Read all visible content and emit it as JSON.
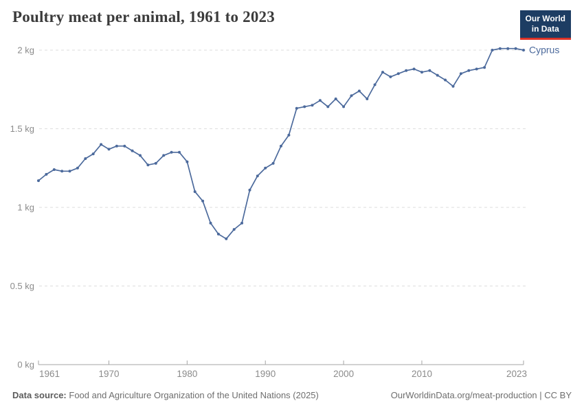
{
  "header": {
    "title": "Poultry meat per animal, 1961 to 2023"
  },
  "logo": {
    "line1": "Our World",
    "line2": "in Data"
  },
  "chart_data": {
    "type": "line",
    "title": "Poultry meat per animal, 1961 to 2023",
    "xlim": [
      1961,
      2023
    ],
    "ylim": [
      0,
      2
    ],
    "unit": "kg",
    "grid": "horizontal-dashed",
    "legend_position": "end-of-line-label",
    "x_ticks": [
      1961,
      1970,
      1980,
      1990,
      2000,
      2010,
      2023
    ],
    "y_ticks": [
      {
        "value": 0,
        "label": "0 kg"
      },
      {
        "value": 0.5,
        "label": "0.5 kg"
      },
      {
        "value": 1,
        "label": "1 kg"
      },
      {
        "value": 1.5,
        "label": "1.5 kg"
      },
      {
        "value": 2,
        "label": "2 kg"
      }
    ],
    "series": [
      {
        "name": "Cyprus",
        "color": "#4C6A9C",
        "x": [
          1961,
          1962,
          1963,
          1964,
          1965,
          1966,
          1967,
          1968,
          1969,
          1970,
          1971,
          1972,
          1973,
          1974,
          1975,
          1976,
          1977,
          1978,
          1979,
          1980,
          1981,
          1982,
          1983,
          1984,
          1985,
          1986,
          1987,
          1988,
          1989,
          1990,
          1991,
          1992,
          1993,
          1994,
          1995,
          1996,
          1997,
          1998,
          1999,
          2000,
          2001,
          2002,
          2003,
          2004,
          2005,
          2006,
          2007,
          2008,
          2009,
          2010,
          2011,
          2012,
          2013,
          2014,
          2015,
          2016,
          2017,
          2018,
          2019,
          2020,
          2021,
          2022,
          2023
        ],
        "values": [
          1.17,
          1.21,
          1.24,
          1.23,
          1.23,
          1.25,
          1.31,
          1.34,
          1.4,
          1.37,
          1.39,
          1.39,
          1.36,
          1.33,
          1.27,
          1.28,
          1.33,
          1.35,
          1.35,
          1.29,
          1.1,
          1.04,
          0.9,
          0.83,
          0.8,
          0.86,
          0.9,
          1.11,
          1.2,
          1.25,
          1.28,
          1.39,
          1.46,
          1.63,
          1.64,
          1.65,
          1.68,
          1.64,
          1.69,
          1.64,
          1.71,
          1.74,
          1.69,
          1.78,
          1.86,
          1.83,
          1.85,
          1.87,
          1.88,
          1.86,
          1.87,
          1.84,
          1.81,
          1.77,
          1.85,
          1.87,
          1.88,
          1.89,
          2.0,
          2.01,
          2.01,
          2.01,
          2.0
        ]
      }
    ]
  },
  "footer": {
    "source_bold": "Data source:",
    "source_text": "Food and Agriculture Organization of the United Nations (2025)",
    "credit": "OurWorldinData.org/meat-production | CC BY"
  },
  "colors": {
    "line": "#4C6A9C",
    "logo_bg": "#1d3d63",
    "logo_accent": "#dc3327",
    "grid": "#dddddd",
    "axis": "#a5a5a5",
    "tick_text": "#8b8b8b",
    "title_text": "#3b3b3b",
    "footer_text": "#6e6e6e"
  }
}
